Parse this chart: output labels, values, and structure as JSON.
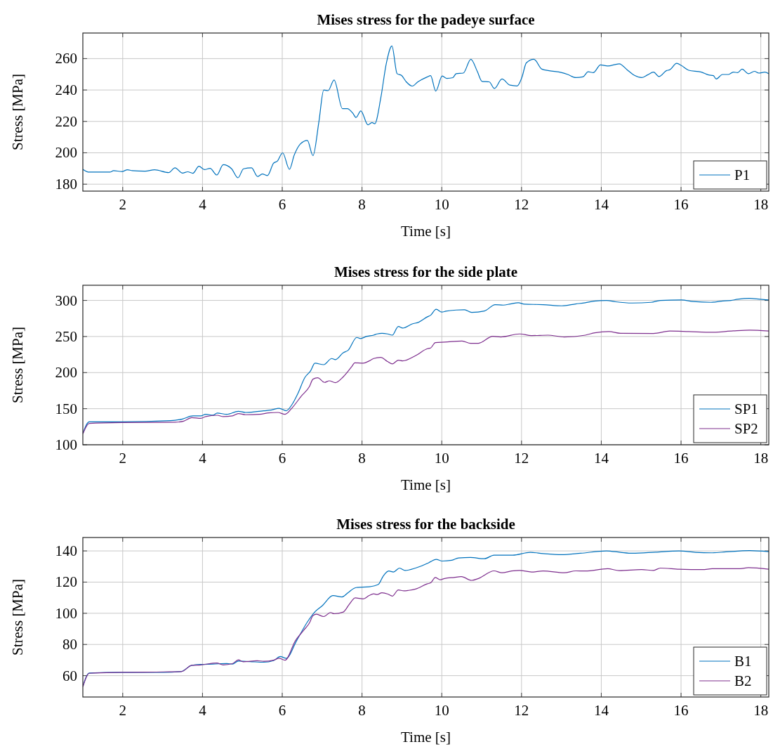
{
  "chart_data": [
    {
      "type": "line",
      "title": "Mises stress for the padeye surface",
      "xlabel": "Time [s]",
      "ylabel": "Stress [MPa]",
      "xlim": [
        1,
        18.2
      ],
      "xticks": [
        2,
        4,
        6,
        8,
        10,
        12,
        14,
        16,
        18
      ],
      "ylim": [
        175.6,
        276.3
      ],
      "yticks": [
        180,
        200,
        220,
        240,
        260
      ],
      "grid": true,
      "legend": "bottom right",
      "series": [
        {
          "name": "P1",
          "color": "#0072bd",
          "x": [
            1,
            1.16,
            1.68,
            1.77,
            1.98,
            2.12,
            2.24,
            2.56,
            2.8,
            3.15,
            3.31,
            3.5,
            3.63,
            3.76,
            3.91,
            4.05,
            4.19,
            4.36,
            4.52,
            4.73,
            4.89,
            5.03,
            5.23,
            5.38,
            5.5,
            5.63,
            5.78,
            5.88,
            6.01,
            6.18,
            6.3,
            6.45,
            6.63,
            6.77,
            6.92,
            7.04,
            7.15,
            7.3,
            7.51,
            7.63,
            7.77,
            7.85,
            7.97,
            8.15,
            8.25,
            8.32,
            8.47,
            8.61,
            8.75,
            8.88,
            8.99,
            9.11,
            9.26,
            9.4,
            9.64,
            9.72,
            9.85,
            10.01,
            10.13,
            10.28,
            10.36,
            10.54,
            10.73,
            10.89,
            11.01,
            11.19,
            11.32,
            11.51,
            11.71,
            11.89,
            12.01,
            12.12,
            12.31,
            12.51,
            12.69,
            13.01,
            13.16,
            13.36,
            13.54,
            13.67,
            13.8,
            13.98,
            14.16,
            14.45,
            14.66,
            14.84,
            15.01,
            15.16,
            15.31,
            15.45,
            15.63,
            15.72,
            15.89,
            16.01,
            16.19,
            16.51,
            16.69,
            16.81,
            16.88,
            17.04,
            17.19,
            17.31,
            17.42,
            17.53,
            17.69,
            17.84,
            17.95,
            18.1,
            18.2
          ],
          "values": [
            189.5,
            187.7,
            187.7,
            188.6,
            188.1,
            189.2,
            188.6,
            188.3,
            189.2,
            187.4,
            190.4,
            187.1,
            187.9,
            187,
            191.4,
            189.3,
            190.1,
            185.9,
            192.4,
            189.8,
            184.1,
            189.8,
            190.4,
            184.9,
            186.5,
            185.5,
            193.3,
            194.8,
            200,
            189.5,
            198.5,
            205.5,
            207.9,
            198.2,
            220,
            240,
            239.6,
            246.4,
            228.1,
            228.1,
            225.2,
            222.5,
            226.7,
            217.8,
            219.3,
            218.5,
            234.8,
            257,
            268.1,
            250.4,
            249.3,
            245.2,
            242.5,
            245.2,
            248.4,
            249.2,
            239.3,
            248.9,
            247.4,
            247.9,
            250.4,
            250.8,
            259.6,
            251.9,
            245.5,
            245.2,
            241,
            247,
            243.1,
            242.6,
            248.1,
            257.3,
            259.6,
            253.3,
            252.3,
            251.1,
            249.9,
            247.9,
            248.4,
            251.6,
            251.1,
            256,
            255.3,
            256.7,
            252.6,
            249.2,
            247.9,
            249.6,
            251.4,
            248.6,
            252.3,
            252.9,
            257,
            255.6,
            252.6,
            251.4,
            249.6,
            249.2,
            247,
            249.9,
            249.9,
            251.4,
            251.1,
            253.3,
            250.4,
            251.9,
            250.8,
            251.4,
            250.4
          ]
        }
      ]
    },
    {
      "type": "line",
      "title": "Mises stress for the side plate",
      "xlabel": "Time [s]",
      "ylabel": "Stress [MPa]",
      "xlim": [
        1,
        18.2
      ],
      "xticks": [
        2,
        4,
        6,
        8,
        10,
        12,
        14,
        16,
        18
      ],
      "ylim": [
        100,
        321
      ],
      "yticks": [
        100,
        150,
        200,
        250,
        300
      ],
      "grid": true,
      "legend": "bottom right",
      "series": [
        {
          "name": "SP1",
          "color": "#0072bd",
          "x": [
            1,
            1.16,
            1.98,
            3.2,
            3.5,
            3.76,
            3.96,
            4.08,
            4.26,
            4.37,
            4.61,
            4.9,
            5.08,
            5.37,
            5.54,
            5.72,
            5.92,
            6.1,
            6.25,
            6.39,
            6.57,
            6.71,
            6.82,
            7.04,
            7.24,
            7.33,
            7.53,
            7.65,
            7.87,
            7.96,
            8.12,
            8.29,
            8.38,
            8.5,
            8.64,
            8.76,
            8.91,
            9.02,
            9.26,
            9.42,
            9.64,
            9.72,
            9.86,
            10,
            10.1,
            10.36,
            10.57,
            10.75,
            11.07,
            11.34,
            11.54,
            11.72,
            11.92,
            12.07,
            12.54,
            13.01,
            13.36,
            13.6,
            13.81,
            14.13,
            14.36,
            14.78,
            15.25,
            15.48,
            16.01,
            16.31,
            16.75,
            17.01,
            17.25,
            17.42,
            17.71,
            17.98,
            18.2
          ],
          "values": [
            115.6,
            131.8,
            131.8,
            133.4,
            135.7,
            140,
            140,
            142.2,
            141,
            143.9,
            142.2,
            146.4,
            144.8,
            146.1,
            147.1,
            148.1,
            150.6,
            147.1,
            156.2,
            170.8,
            193.5,
            202.3,
            213,
            211,
            219.5,
            217.9,
            227.6,
            230.8,
            248.7,
            247.1,
            250.3,
            251.9,
            253.6,
            254.5,
            253.6,
            251.9,
            264,
            261.7,
            267.5,
            269.8,
            277.3,
            279.5,
            287.7,
            283.8,
            285.1,
            286.7,
            287,
            283.4,
            285.4,
            294.2,
            293.5,
            295.1,
            296.8,
            294.8,
            294.2,
            292.5,
            295.1,
            296.8,
            299,
            300,
            298.1,
            296.4,
            297.4,
            300,
            300.6,
            298.4,
            297.4,
            299,
            300,
            301.6,
            302.9,
            301.6,
            300.6
          ]
        },
        {
          "name": "SP2",
          "color": "#7e2f8e",
          "x": [
            1,
            1.16,
            1.98,
            3.32,
            3.53,
            3.73,
            3.96,
            4.08,
            4.37,
            4.52,
            4.75,
            4.9,
            5.08,
            5.43,
            5.66,
            5.89,
            6.07,
            6.25,
            6.48,
            6.68,
            6.77,
            6.89,
            7.06,
            7.18,
            7.33,
            7.53,
            7.74,
            7.82,
            8.03,
            8.18,
            8.29,
            8.47,
            8.64,
            8.76,
            8.91,
            9.02,
            9.34,
            9.64,
            9.72,
            9.84,
            10.07,
            10.51,
            10.72,
            10.92,
            11.28,
            11.48,
            11.95,
            12.25,
            12.66,
            13.07,
            13.6,
            13.84,
            14.19,
            14.48,
            15.31,
            15.72,
            16.19,
            16.78,
            17.31,
            17.72,
            18.2
          ],
          "values": [
            115,
            129.5,
            130.8,
            131.2,
            132.8,
            137.7,
            136.7,
            139,
            140.9,
            139,
            140,
            143.2,
            141.6,
            142.2,
            144.2,
            144.8,
            142.2,
            151.3,
            167.5,
            180.5,
            190.9,
            192.9,
            186.4,
            188.6,
            186,
            194.2,
            208.1,
            213.6,
            213,
            216.2,
            219.5,
            221.1,
            215.3,
            212,
            217.2,
            216.2,
            223.4,
            233.1,
            234.1,
            241.6,
            242.2,
            243.8,
            240.6,
            240.6,
            250.3,
            249.4,
            253.6,
            251.3,
            251.9,
            249.4,
            251.9,
            255.2,
            256.8,
            254.5,
            254.2,
            257.5,
            256.8,
            255.8,
            257.8,
            258.8,
            257.5
          ]
        }
      ]
    },
    {
      "type": "line",
      "title": "Mises stress for the backside",
      "xlabel": "Time [s]",
      "ylabel": "Stress [MPa]",
      "xlim": [
        1,
        18.2
      ],
      "xticks": [
        2,
        4,
        6,
        8,
        10,
        12,
        14,
        16,
        18
      ],
      "ylim": [
        46.3,
        148.6
      ],
      "yticks": [
        60,
        80,
        100,
        120,
        140
      ],
      "grid": true,
      "legend": "bottom right",
      "series": [
        {
          "name": "B1",
          "color": "#0072bd",
          "x": [
            1,
            1.16,
            1.98,
            3.03,
            3.47,
            3.73,
            3.96,
            4.26,
            4.61,
            4.75,
            4.9,
            5.19,
            5.54,
            5.78,
            5.95,
            6.1,
            6.36,
            6.63,
            6.83,
            7.01,
            7.27,
            7.5,
            7.65,
            7.85,
            8.18,
            8.41,
            8.53,
            8.67,
            8.79,
            8.94,
            9.08,
            9.34,
            9.64,
            9.72,
            9.86,
            10.01,
            10.25,
            10.42,
            10.72,
            11.07,
            11.31,
            11.78,
            12.22,
            12.54,
            13.01,
            13.48,
            14.13,
            14.48,
            14.78,
            15.36,
            15.95,
            16.36,
            16.78,
            17.13,
            17.72,
            18.2
          ],
          "values": [
            53.1,
            61.7,
            62.1,
            62.1,
            62.7,
            66.6,
            67.2,
            67.4,
            67.8,
            67.4,
            69.3,
            69,
            68.6,
            69.6,
            72.3,
            71.1,
            82.4,
            94.4,
            101.2,
            105,
            111.4,
            110.5,
            113.2,
            116.5,
            117,
            118.5,
            123.8,
            127.1,
            126.5,
            129,
            127.5,
            129,
            132,
            133.1,
            134.6,
            133.5,
            134,
            135.5,
            135.8,
            135,
            137.3,
            137.3,
            139.1,
            138.3,
            137.6,
            138.5,
            140,
            139.1,
            138.5,
            139.2,
            140,
            139.1,
            138.8,
            139.4,
            140.2,
            139.5
          ]
        },
        {
          "name": "B2",
          "color": "#7e2f8e",
          "x": [
            1,
            1.16,
            1.98,
            3.03,
            3.47,
            3.73,
            3.96,
            4.36,
            4.52,
            4.75,
            4.9,
            5.02,
            5.37,
            5.54,
            5.78,
            5.92,
            6.07,
            6.33,
            6.54,
            6.68,
            6.77,
            6.86,
            7.04,
            7.21,
            7.3,
            7.53,
            7.68,
            7.83,
            8.03,
            8.18,
            8.29,
            8.38,
            8.5,
            8.65,
            8.76,
            8.91,
            9.05,
            9.17,
            9.34,
            9.64,
            9.72,
            9.84,
            9.96,
            10.07,
            10.31,
            10.49,
            10.75,
            10.92,
            11.31,
            11.51,
            11.75,
            11.95,
            12.25,
            12.54,
            13.07,
            13.36,
            13.6,
            14.16,
            14.45,
            15.01,
            15.31,
            15.48,
            15.95,
            16.54,
            16.78,
            17.13,
            17.48,
            17.69,
            18.2
          ],
          "values": [
            52.8,
            61.5,
            62.1,
            62.4,
            62.6,
            66.6,
            66.9,
            68.1,
            66.9,
            67.7,
            70.1,
            68.9,
            69.6,
            69.2,
            69.9,
            71.1,
            69.9,
            82.4,
            89.2,
            93.7,
            98.5,
            99.4,
            97.9,
            100.5,
            99.7,
            100.8,
            105.7,
            109.9,
            109.2,
            111.4,
            112.5,
            112,
            113.2,
            112.3,
            111,
            115,
            114.4,
            114.7,
            115.5,
            118.9,
            119.5,
            123,
            121.5,
            122.3,
            123,
            123.5,
            121.1,
            122.3,
            127.2,
            126,
            127.1,
            127.5,
            126.5,
            127.1,
            126,
            127.2,
            127.1,
            128.6,
            127.4,
            128,
            127.5,
            129,
            128.3,
            128,
            128.6,
            128.6,
            128.6,
            129.3,
            128.3
          ]
        }
      ]
    }
  ]
}
